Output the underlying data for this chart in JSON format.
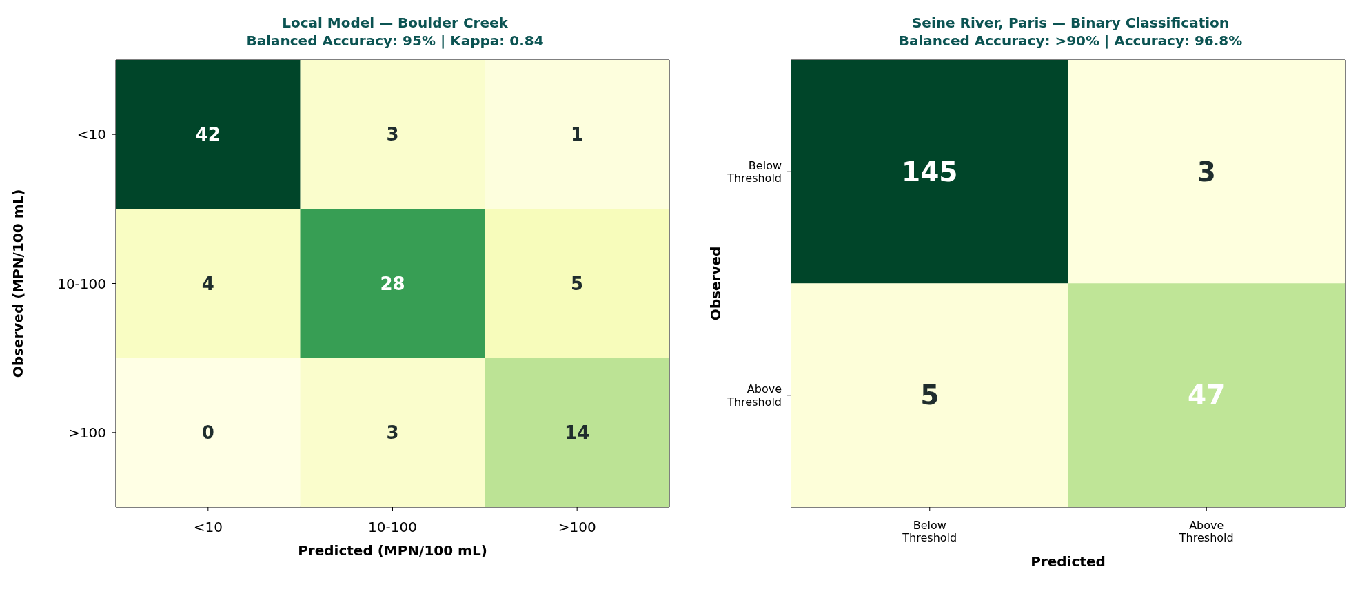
{
  "chart_data": [
    {
      "type": "heatmap",
      "title": "Local Model — Boulder Creek",
      "subtitle": "Balanced Accuracy: 95% | Kappa: 0.84",
      "xlabel": "Predicted (MPN/100 mL)",
      "ylabel": "Observed (MPN/100 mL)",
      "categories": [
        "<10",
        "10-100",
        ">100"
      ],
      "y_categories": [
        "<10",
        "10-100",
        ">100"
      ],
      "cells": [
        [
          42,
          3,
          1
        ],
        [
          4,
          28,
          5
        ],
        [
          0,
          3,
          14
        ]
      ],
      "data_labels": true
    },
    {
      "type": "heatmap",
      "title": "Seine River, Paris — Binary Classification",
      "subtitle": "Balanced Accuracy: >90% | Accuracy: 96.8%",
      "xlabel": "Predicted",
      "ylabel": "Observed",
      "categories": [
        "Below Threshold",
        "Above Threshold"
      ],
      "y_categories": [
        "Below Threshold",
        "Above Threshold"
      ],
      "cells": [
        [
          145,
          3
        ],
        [
          5,
          47
        ]
      ],
      "data_labels": true
    }
  ]
}
